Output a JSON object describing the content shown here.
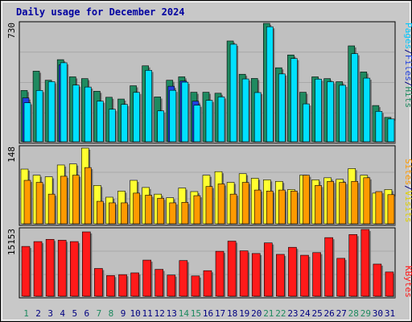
{
  "title": "Daily usage for December 2024",
  "colors": {
    "background": "#c8c8c8",
    "plot_bg": "#c0c0c0",
    "hits": "#1f8a60",
    "files": "#2040e0",
    "pages": "#00e0ff",
    "visits": "#ffff30",
    "sites": "#ff9a00",
    "kbytes": "#ff1a1a",
    "title": "#0000a0",
    "weekend_day": "#1f8a60",
    "weekday": "#000080"
  },
  "legend": {
    "hits_panel": [
      {
        "text": "Pages",
        "color": "#00c8ff"
      },
      {
        "text": "/",
        "color": "#000080"
      },
      {
        "text": "Files",
        "color": "#2040e0"
      },
      {
        "text": "/",
        "color": "#000080"
      },
      {
        "text": "Hits",
        "color": "#1f8a60"
      }
    ],
    "visits_panel": [
      {
        "text": "Sites",
        "color": "#ff9a00"
      },
      {
        "text": "/",
        "color": "#000080"
      },
      {
        "text": "Visits",
        "color": "#e0d000"
      }
    ],
    "kbytes_panel": [
      {
        "text": "KBytes",
        "color": "#ff1a1a"
      }
    ]
  },
  "chart_data": [
    {
      "type": "bar",
      "name": "hits-files-pages",
      "categories": [
        "1",
        "2",
        "3",
        "4",
        "5",
        "6",
        "7",
        "8",
        "9",
        "10",
        "11",
        "12",
        "13",
        "14",
        "15",
        "16",
        "17",
        "18",
        "19",
        "20",
        "21",
        "22",
        "23",
        "24",
        "25",
        "26",
        "27",
        "28",
        "29",
        "30",
        "31"
      ],
      "ylim": [
        0,
        730
      ],
      "ymax_label": "730",
      "series": [
        {
          "name": "Hits",
          "values": [
            316,
            435,
            379,
            506,
            400,
            389,
            311,
            274,
            263,
            345,
            468,
            276,
            379,
            400,
            305,
            305,
            299,
            621,
            416,
            390,
            730,
            456,
            535,
            305,
            400,
            389,
            370,
            591,
            430,
            223,
            150
          ]
        },
        {
          "name": "Files",
          "values": [
            270,
            0,
            0,
            474,
            0,
            0,
            0,
            0,
            0,
            0,
            0,
            0,
            342,
            374,
            250,
            0,
            0,
            0,
            0,
            0,
            0,
            0,
            0,
            0,
            0,
            0,
            0,
            0,
            0,
            0,
            0
          ]
        },
        {
          "name": "Pages",
          "values": [
            240,
            316,
            370,
            487,
            349,
            337,
            250,
            200,
            230,
            304,
            440,
            190,
            317,
            367,
            225,
            255,
            276,
            601,
            387,
            303,
            709,
            418,
            513,
            233,
            386,
            370,
            348,
            543,
            392,
            187,
            140
          ]
        }
      ]
    },
    {
      "type": "bar",
      "name": "visits-sites",
      "categories": [
        "1",
        "2",
        "3",
        "4",
        "5",
        "6",
        "7",
        "8",
        "9",
        "10",
        "11",
        "12",
        "13",
        "14",
        "15",
        "16",
        "17",
        "18",
        "19",
        "20",
        "21",
        "22",
        "23",
        "24",
        "25",
        "26",
        "27",
        "28",
        "29",
        "30",
        "31"
      ],
      "ylim": [
        0,
        148
      ],
      "ymax_label": "148",
      "series": [
        {
          "name": "Visits",
          "values": [
            107,
            95,
            92,
            115,
            117,
            148,
            75,
            52,
            64,
            85,
            71,
            58,
            51,
            70,
            63,
            95,
            102,
            81,
            98,
            89,
            86,
            83,
            67,
            95,
            86,
            90,
            87,
            108,
            95,
            60,
            67
          ]
        },
        {
          "name": "Sites",
          "values": [
            85,
            81,
            58,
            93,
            95,
            110,
            44,
            41,
            41,
            60,
            56,
            50,
            41,
            42,
            55,
            73,
            78,
            58,
            81,
            66,
            64,
            66,
            64,
            95,
            75,
            83,
            81,
            83,
            90,
            63,
            57
          ]
        }
      ]
    },
    {
      "type": "bar",
      "name": "kbytes",
      "categories": [
        "1",
        "2",
        "3",
        "4",
        "5",
        "6",
        "7",
        "8",
        "9",
        "10",
        "11",
        "12",
        "13",
        "14",
        "15",
        "16",
        "17",
        "18",
        "19",
        "20",
        "21",
        "22",
        "23",
        "24",
        "25",
        "26",
        "27",
        "28",
        "29",
        "30",
        "31"
      ],
      "ylim": [
        0,
        15153
      ],
      "ymax_label": "15153",
      "series": [
        {
          "name": "KBytes",
          "values": [
            11300,
            12400,
            12900,
            12700,
            12400,
            14600,
            6300,
            4700,
            4900,
            5300,
            8200,
            6100,
            4800,
            8100,
            4600,
            5800,
            10200,
            12500,
            10300,
            9700,
            12100,
            9500,
            11100,
            9300,
            9900,
            13300,
            8600,
            14000,
            15153,
            7300,
            5500
          ]
        }
      ]
    }
  ]
}
